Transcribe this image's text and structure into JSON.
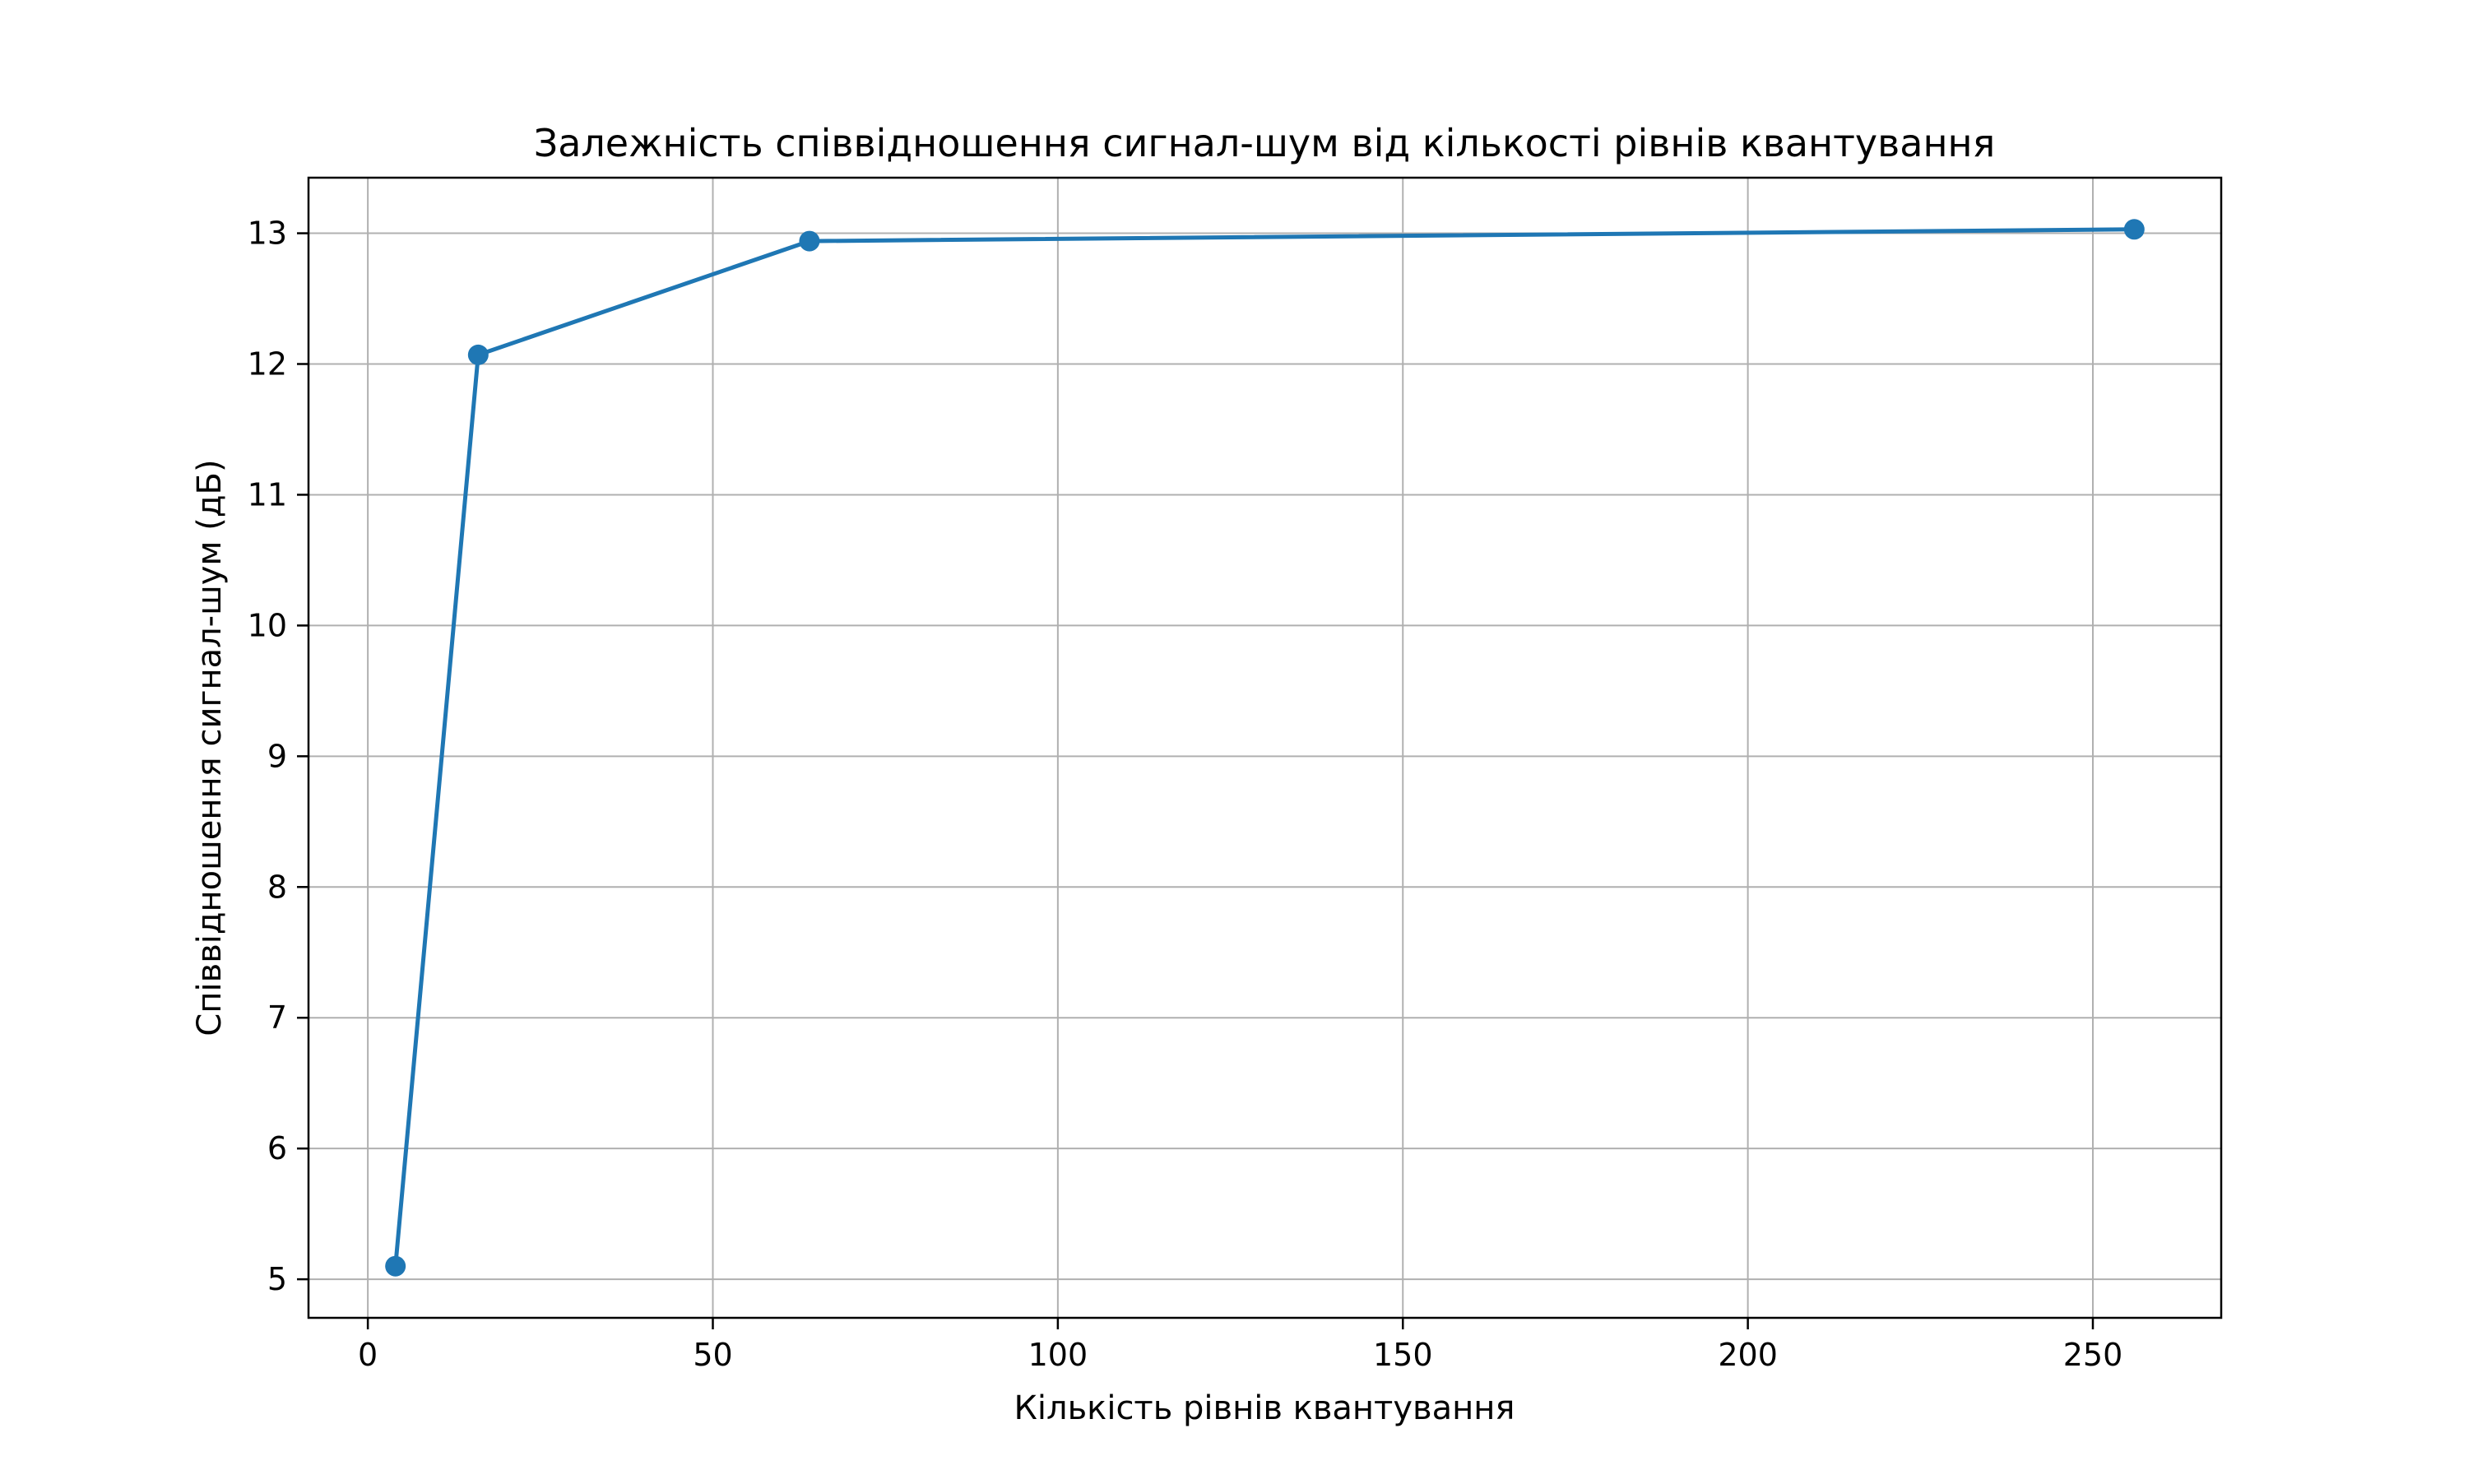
{
  "chart_data": {
    "type": "line",
    "title": "Залежність співвідношення сигнал-шум від кількості рівнів квантування",
    "xlabel": "Кількість рівнів квантування",
    "ylabel": "Співвідношення сигнал-шум (дБ)",
    "xlim": [
      -8.6,
      268.6
    ],
    "ylim": [
      4.705,
      13.425
    ],
    "x_ticks": [
      0,
      50,
      100,
      150,
      200,
      250
    ],
    "y_ticks": [
      5,
      6,
      7,
      8,
      9,
      10,
      11,
      12,
      13
    ],
    "grid": true,
    "series": [
      {
        "x": [
          4,
          16,
          64,
          256
        ],
        "y": [
          5.1,
          12.07,
          12.94,
          13.03
        ],
        "color": "#1f77b4",
        "marker": "circle"
      }
    ]
  }
}
